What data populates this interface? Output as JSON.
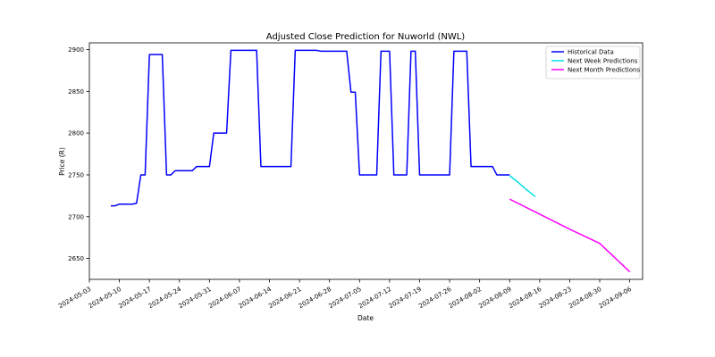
{
  "chart_data": {
    "type": "line",
    "title": "Adjusted Close Prediction for Nuworld (NWL)",
    "xlabel": "Date",
    "ylabel": "Price (R)",
    "x_range": [
      "2024-05-03",
      "2024-09-09"
    ],
    "ylim": [
      2625,
      2908
    ],
    "x_ticks": [
      "2024-05-03",
      "2024-05-10",
      "2024-05-17",
      "2024-05-24",
      "2024-05-31",
      "2024-06-07",
      "2024-06-14",
      "2024-06-21",
      "2024-06-28",
      "2024-07-05",
      "2024-07-12",
      "2024-07-19",
      "2024-07-26",
      "2024-08-02",
      "2024-08-09",
      "2024-08-16",
      "2024-08-23",
      "2024-08-30",
      "2024-09-06"
    ],
    "y_ticks": [
      2650,
      2700,
      2750,
      2800,
      2850,
      2900
    ],
    "legend_position": "top-right",
    "grid": false,
    "series": [
      {
        "name": "Historical Data",
        "color": "#0000ff",
        "points": [
          [
            "2024-05-08",
            2713
          ],
          [
            "2024-05-09",
            2713
          ],
          [
            "2024-05-10",
            2715
          ],
          [
            "2024-05-13",
            2715
          ],
          [
            "2024-05-14",
            2716
          ],
          [
            "2024-05-15",
            2750
          ],
          [
            "2024-05-16",
            2750
          ],
          [
            "2024-05-17",
            2894
          ],
          [
            "2024-05-20",
            2894
          ],
          [
            "2024-05-21",
            2750
          ],
          [
            "2024-05-22",
            2750
          ],
          [
            "2024-05-23",
            2755
          ],
          [
            "2024-05-27",
            2755
          ],
          [
            "2024-05-28",
            2760
          ],
          [
            "2024-05-31",
            2760
          ],
          [
            "2024-06-01",
            2800
          ],
          [
            "2024-06-04",
            2800
          ],
          [
            "2024-06-05",
            2899
          ],
          [
            "2024-06-11",
            2899
          ],
          [
            "2024-06-12",
            2760
          ],
          [
            "2024-06-19",
            2760
          ],
          [
            "2024-06-20",
            2899
          ],
          [
            "2024-06-25",
            2899
          ],
          [
            "2024-06-26",
            2898
          ],
          [
            "2024-07-02",
            2898
          ],
          [
            "2024-07-03",
            2849
          ],
          [
            "2024-07-04",
            2849
          ],
          [
            "2024-07-05",
            2750
          ],
          [
            "2024-07-09",
            2750
          ],
          [
            "2024-07-10",
            2898
          ],
          [
            "2024-07-12",
            2898
          ],
          [
            "2024-07-13",
            2750
          ],
          [
            "2024-07-16",
            2750
          ],
          [
            "2024-07-17",
            2898
          ],
          [
            "2024-07-18",
            2898
          ],
          [
            "2024-07-19",
            2750
          ],
          [
            "2024-07-26",
            2750
          ],
          [
            "2024-07-27",
            2898
          ],
          [
            "2024-07-30",
            2898
          ],
          [
            "2024-07-31",
            2760
          ],
          [
            "2024-08-05",
            2760
          ],
          [
            "2024-08-06",
            2750
          ],
          [
            "2024-08-09",
            2750
          ]
        ]
      },
      {
        "name": "Next Week Predictions",
        "color": "#00e0e8",
        "points": [
          [
            "2024-08-09",
            2749
          ],
          [
            "2024-08-11",
            2741
          ],
          [
            "2024-08-13",
            2732
          ],
          [
            "2024-08-15",
            2724
          ]
        ]
      },
      {
        "name": "Next Month Predictions",
        "color": "#ff00ff",
        "points": [
          [
            "2024-08-09",
            2721
          ],
          [
            "2024-08-16",
            2703
          ],
          [
            "2024-08-23",
            2685
          ],
          [
            "2024-08-30",
            2668
          ],
          [
            "2024-09-06",
            2634
          ]
        ]
      }
    ]
  }
}
